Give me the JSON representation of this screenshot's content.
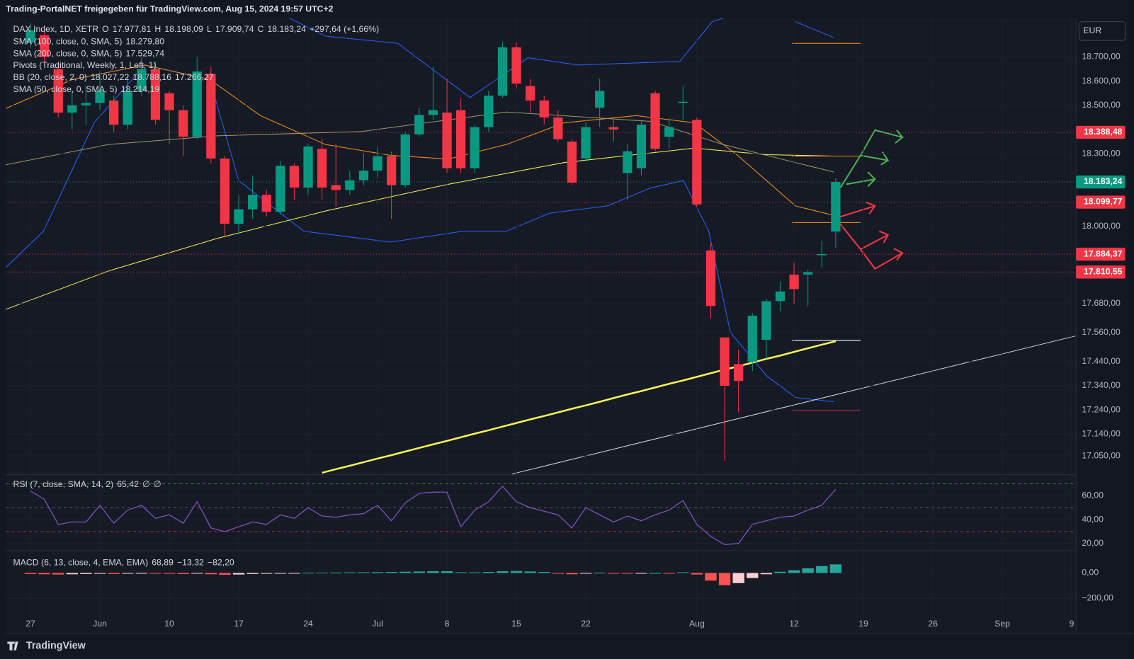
{
  "header": "Trading-PortalNET freigegeben für TradingView.com, Aug 15, 2024 19:57 UTC+2",
  "footer": "TradingView",
  "currency": "EUR",
  "chart_data": [
    {
      "type": "candlestick",
      "title": "DAX Index, 1D, XETR",
      "ohlc_legend": [
        "O",
        "17.977,81",
        "H",
        "18.198,09",
        "L",
        "17.909,74",
        "C",
        "18.183,24"
      ],
      "change": "+297,64 (+1,66%)",
      "up_color": "#089981",
      "down_color": "#f23645",
      "xlim": [
        -1.77,
        75.31
      ],
      "xticks": [
        {
          "value": 0,
          "label": "27"
        },
        {
          "value": 5,
          "label": "Jun"
        },
        {
          "value": 10,
          "label": "10"
        },
        {
          "value": 15,
          "label": "17"
        },
        {
          "value": 20,
          "label": "24"
        },
        {
          "value": 25,
          "label": "Jul"
        },
        {
          "value": 30,
          "label": "8"
        },
        {
          "value": 35,
          "label": "15"
        },
        {
          "value": 40,
          "label": "22"
        },
        {
          "value": 48,
          "label": "Aug"
        },
        {
          "value": 55,
          "label": "12"
        },
        {
          "value": 60,
          "label": "19"
        },
        {
          "value": 65,
          "label": "26"
        },
        {
          "value": 70,
          "label": "Sep"
        },
        {
          "value": 75,
          "label": "9"
        }
      ],
      "ylim": [
        16978,
        18861
      ],
      "yticks": [
        {
          "value": 18700,
          "label": "18.700,00"
        },
        {
          "value": 18600,
          "label": "18.600,00"
        },
        {
          "value": 18500,
          "label": "18.500,00"
        },
        {
          "value": 18300,
          "label": "18.300,00"
        },
        {
          "value": 18000,
          "label": "18.000,00"
        },
        {
          "value": 17680,
          "label": "17.680,00"
        },
        {
          "value": 17560,
          "label": "17.560,00"
        },
        {
          "value": 17440,
          "label": "17.440,00"
        },
        {
          "value": 17340,
          "label": "17.340,00"
        },
        {
          "value": 17240,
          "label": "17.240,00"
        },
        {
          "value": 17140,
          "label": "17.140,00"
        },
        {
          "value": 17050,
          "label": "17.050,00"
        }
      ],
      "grid": true,
      "open": [
        18760,
        18790,
        18650,
        18470,
        18500,
        18510,
        18520,
        18420,
        18560,
        18650,
        18550,
        18480,
        18370,
        18630,
        18280,
        18010,
        18070,
        18130,
        18060,
        18250,
        18160,
        18320,
        18170,
        18150,
        18190,
        18230,
        18290,
        18170,
        18380,
        18460,
        18470,
        18480,
        18240,
        18410,
        18540,
        18740,
        18580,
        18520,
        18450,
        18350,
        18280,
        18490,
        18410,
        18220,
        18240,
        18550,
        18370,
        18510,
        18440,
        17900,
        17540,
        17430,
        17440,
        17530,
        17690,
        17800,
        17800,
        17880,
        17977.81
      ],
      "high": [
        18840,
        18830,
        18680,
        18560,
        18580,
        18640,
        18540,
        18620,
        18700,
        18680,
        18560,
        18500,
        18700,
        18660,
        18290,
        18130,
        18210,
        18150,
        18270,
        18260,
        18340,
        18360,
        18340,
        18230,
        18300,
        18330,
        18310,
        18390,
        18490,
        18660,
        18610,
        18530,
        18420,
        18560,
        18760,
        18760,
        18610,
        18540,
        18480,
        18360,
        18430,
        18610,
        18440,
        18340,
        18440,
        18560,
        18450,
        18580,
        18450,
        17930,
        17540,
        17490,
        17640,
        17700,
        17770,
        17850,
        17820,
        17940,
        18198.09
      ],
      "low": [
        18740,
        18680,
        18450,
        18400,
        18420,
        18480,
        18390,
        18400,
        18540,
        18420,
        18340,
        18290,
        18360,
        18260,
        17960,
        17970,
        18030,
        18040,
        18050,
        18110,
        18130,
        18110,
        18080,
        18130,
        18170,
        18200,
        18030,
        18160,
        18370,
        18440,
        18220,
        18220,
        18220,
        18390,
        18530,
        18570,
        18470,
        18420,
        18350,
        18170,
        18270,
        18410,
        18350,
        18110,
        18210,
        18310,
        18320,
        18440,
        18080,
        17620,
        17030,
        17230,
        17400,
        17450,
        17650,
        17680,
        17670,
        17830,
        17909.74
      ],
      "close": [
        18810,
        18700,
        18470,
        18500,
        18510,
        18560,
        18420,
        18560,
        18650,
        18440,
        18480,
        18370,
        18640,
        18280,
        18010,
        18070,
        18130,
        18060,
        18250,
        18160,
        18330,
        18160,
        18150,
        18190,
        18230,
        18290,
        18170,
        18380,
        18460,
        18480,
        18240,
        18240,
        18410,
        18540,
        18740,
        18590,
        18520,
        18450,
        18360,
        18180,
        18410,
        18560,
        18400,
        18310,
        18420,
        18320,
        18410,
        18515,
        18090,
        17670,
        17340,
        17360,
        17630,
        17690,
        17730,
        17740,
        17810,
        17885,
        18183.24
      ],
      "indicators": [
        {
          "name": "SMA (100, close, 0, SMA, 5)",
          "values": [
            "18.279,80"
          ],
          "color": "#f5e663"
        },
        {
          "name": "SMA (200, close, 0, SMA, 5)",
          "values": [
            "17.529,74"
          ],
          "color": "#f5f55a",
          "line": [
            null,
            null,
            null,
            null,
            null,
            null,
            null,
            null,
            null,
            null,
            null,
            null,
            null,
            null,
            null,
            null,
            null,
            null,
            null,
            null,
            null,
            16980,
            16995,
            17009,
            17024,
            17039,
            17053,
            17068,
            17083,
            17098,
            17112,
            17127,
            17142,
            17156,
            17171,
            17186,
            17201,
            17215,
            17230,
            17245,
            17259,
            17274,
            17289,
            17304,
            17318,
            17333,
            17348,
            17362,
            17377,
            17392,
            17407,
            17421,
            17436,
            17451,
            17465,
            17480,
            17495,
            17510,
            17524
          ]
        },
        {
          "name": "Pivots (Traditional, Weekly, 1, Left, 1)",
          "values": [],
          "color": "#d1d4dc"
        },
        {
          "name": "BB (20, close, 2, 0)",
          "values": [
            "18.027,22",
            "18.788,16",
            "17.266,27"
          ],
          "color": "#f7931a"
        },
        {
          "name": "SMA (50, close, 0, SMA, 5)",
          "values": [
            "18.214,19"
          ],
          "color": "#f5f55a"
        }
      ],
      "levels": [
        {
          "value": 18388.48,
          "label": "18.388,48",
          "color": "#f23645"
        },
        {
          "value": 18183.24,
          "label": "18.183,24",
          "color": "#089981"
        },
        {
          "value": 18099.77,
          "label": "18.099,77",
          "color": "#f23645"
        },
        {
          "value": 17884.37,
          "label": "17.884,37",
          "color": "#f23645"
        },
        {
          "value": 17810.55,
          "label": "17.810,55",
          "color": "#f23645"
        }
      ]
    },
    {
      "type": "line",
      "title": "RSI (7, close, SMA, 14, 2)",
      "legend_values": [
        "65,42",
        "∅",
        "∅"
      ],
      "color": "#7e57c2",
      "ylim": [
        15.2,
        75.8
      ],
      "yticks": [
        {
          "value": 60,
          "label": "60,00"
        },
        {
          "value": 40,
          "label": "40,00"
        },
        {
          "value": 20,
          "label": "20,00"
        }
      ],
      "bands": [
        70,
        50,
        30
      ],
      "values": [
        64,
        57,
        36,
        38,
        38,
        52,
        37,
        48,
        52,
        41,
        44,
        37,
        55,
        33,
        30,
        34,
        38,
        36,
        44,
        41,
        50,
        43,
        42,
        44,
        45,
        52,
        39,
        54,
        62,
        63,
        63,
        34,
        48,
        55,
        68,
        55,
        50,
        47,
        44,
        33,
        50,
        44,
        38,
        43,
        39,
        44,
        48,
        56,
        36,
        26,
        19,
        20,
        36,
        39,
        42,
        43,
        48,
        52,
        65.42
      ]
    },
    {
      "type": "histogram",
      "title": "MACD (6, 13, close, 4, EMA, EMA)",
      "legend_values": [
        "68,89",
        "−13,32",
        "−82,20"
      ],
      "legend_colors": [
        "#26a69a",
        "#2962ff",
        "#ff6d00"
      ],
      "ylim": [
        -326,
        160
      ],
      "yticks": [
        {
          "value": 0,
          "label": "0,00"
        },
        {
          "value": -200,
          "label": "−200,00"
        }
      ],
      "values": [
        -8,
        -10,
        -12,
        -10,
        -8,
        -6,
        -8,
        -5,
        -3,
        -5,
        -6,
        -8,
        -4,
        -10,
        -14,
        -12,
        -8,
        -6,
        -3,
        -2,
        2,
        3,
        4,
        5,
        6,
        7,
        8,
        10,
        12,
        14,
        14,
        6,
        5,
        8,
        14,
        16,
        12,
        8,
        -4,
        -10,
        -4,
        2,
        -2,
        -4,
        -2,
        0,
        -2,
        6,
        -12,
        -60,
        -97,
        -80,
        -40,
        -10,
        10,
        22,
        38,
        55,
        68
      ]
    }
  ]
}
